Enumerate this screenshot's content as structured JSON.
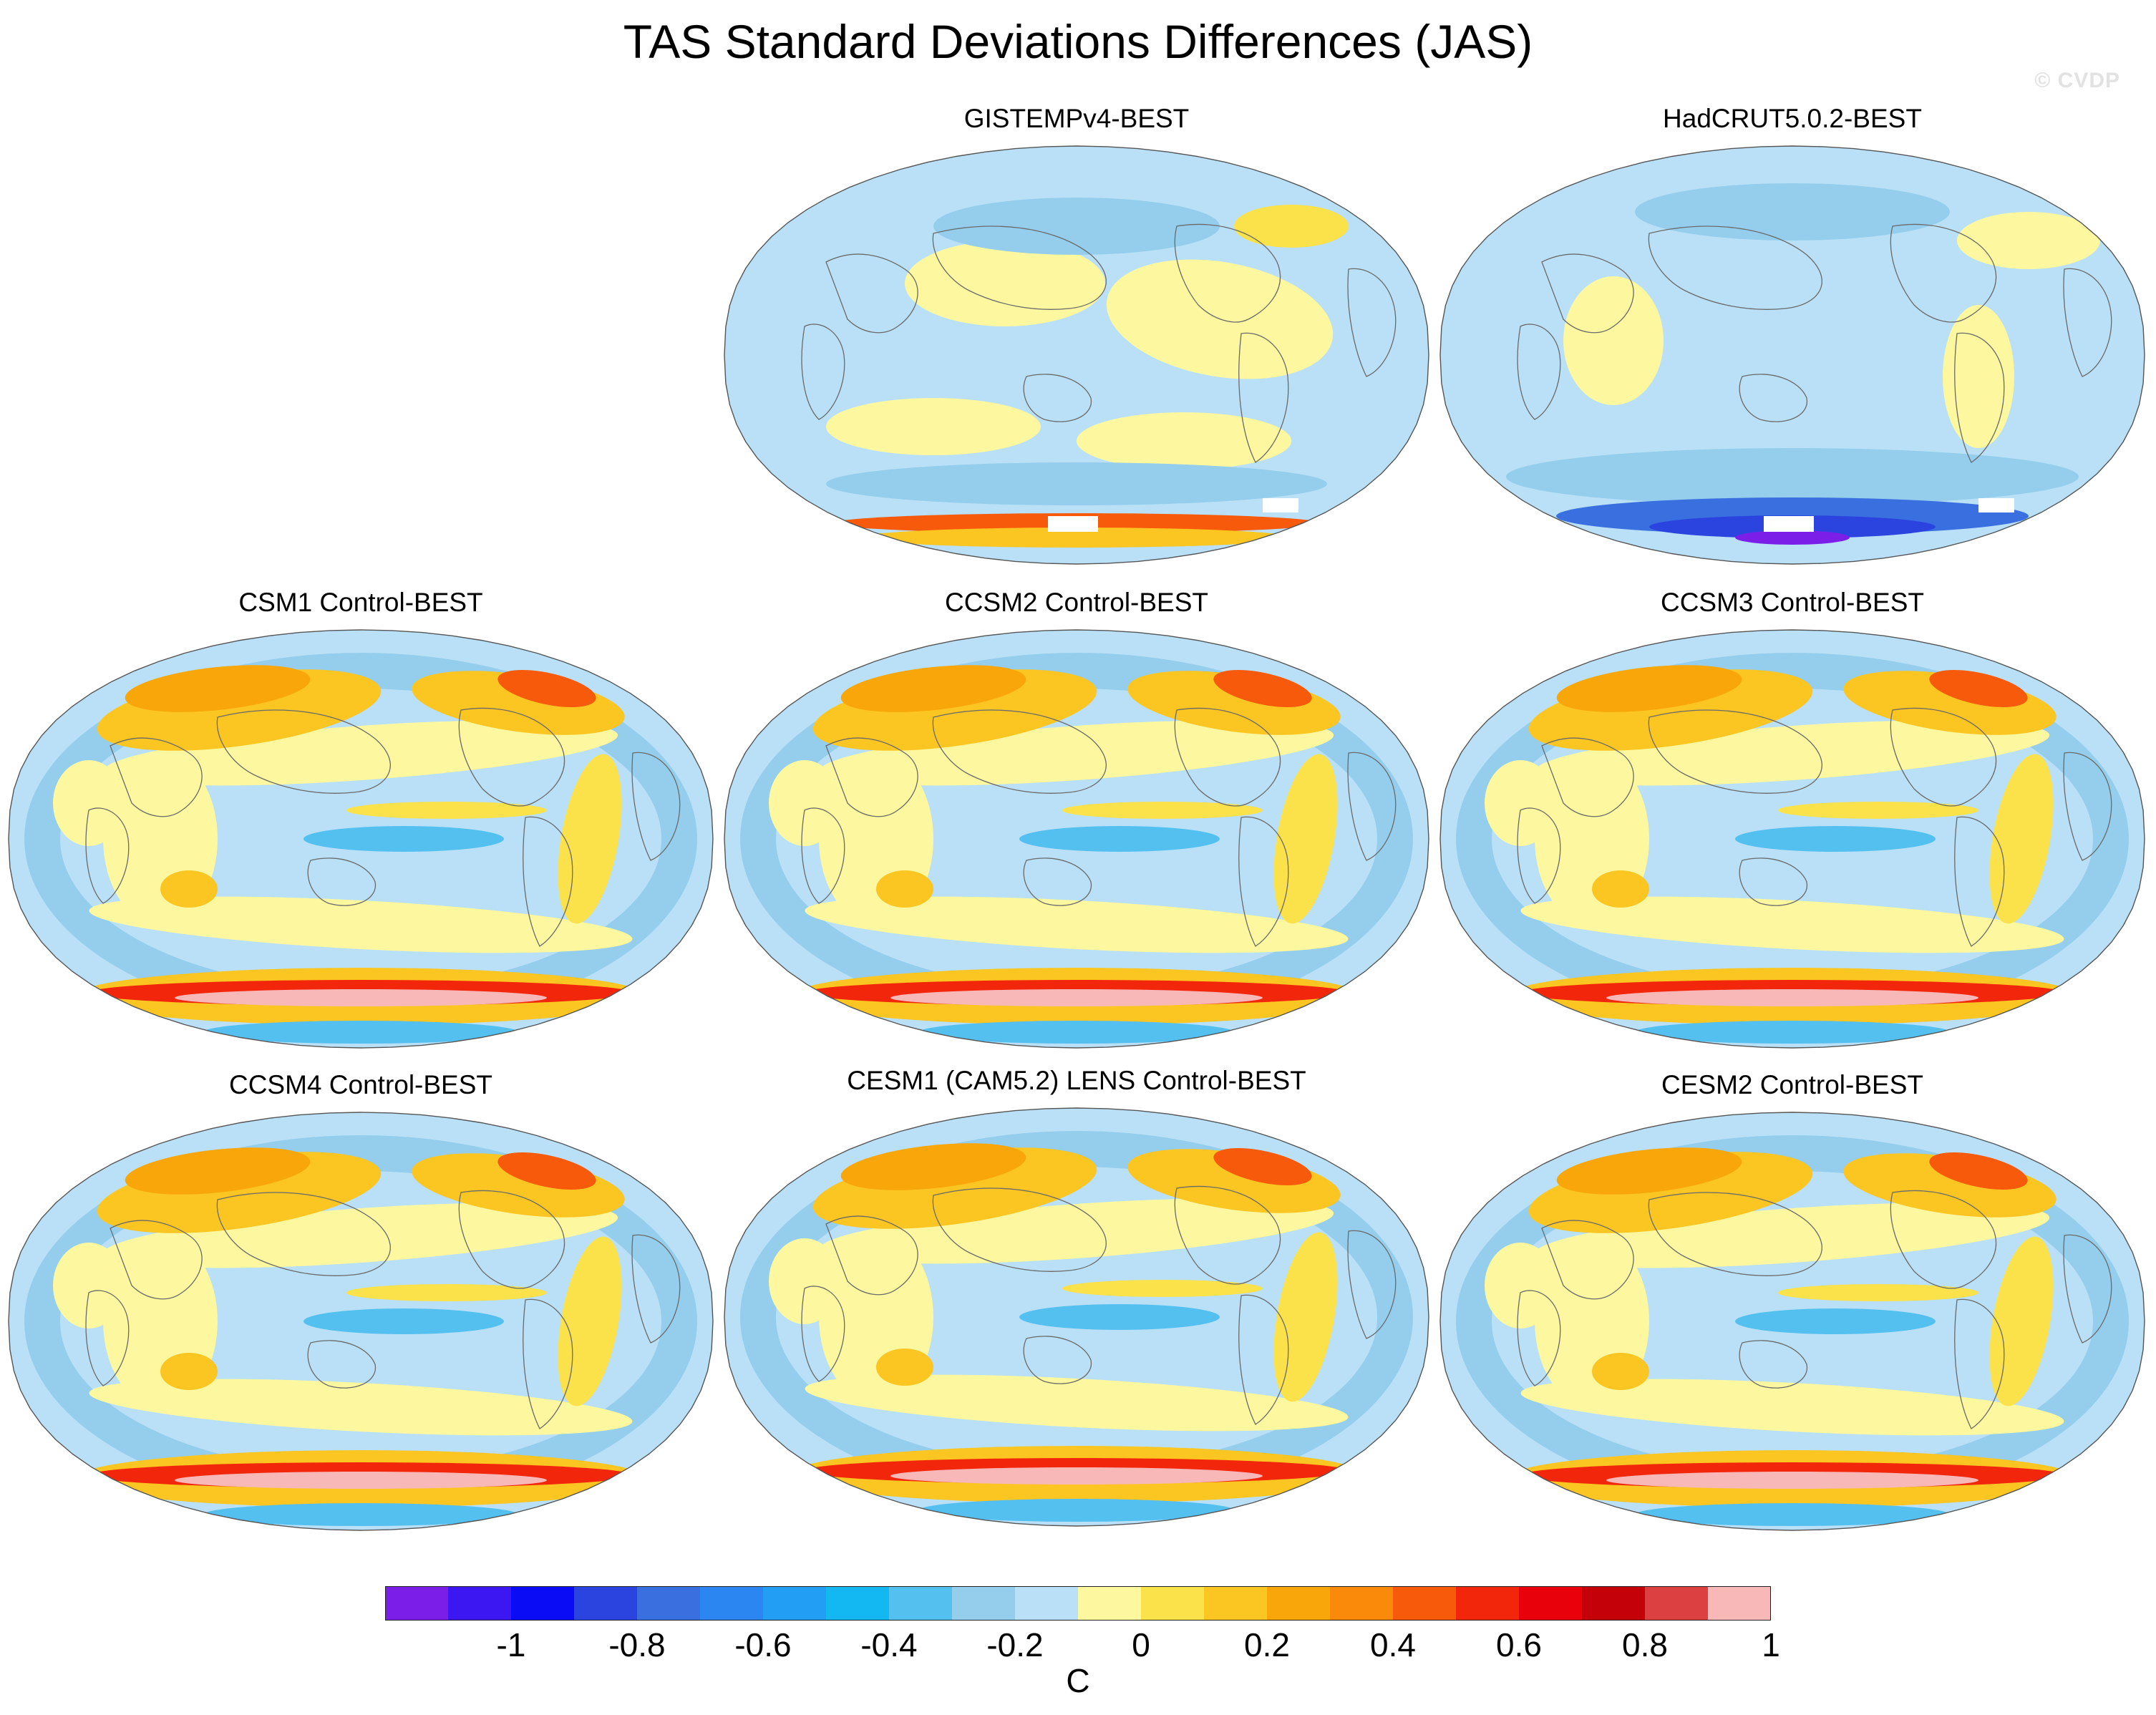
{
  "figure": {
    "title": "TAS Standard Deviations Differences (JAS)",
    "watermark": "© CVDP"
  },
  "panels": [
    {
      "title": "GISTEMPv4-BEST",
      "pattern": "gistemp"
    },
    {
      "title": "HadCRUT5.0.2-BEST",
      "pattern": "hadcrut"
    },
    {
      "title": "CSM1 Control-BEST",
      "pattern": "model"
    },
    {
      "title": "CCSM2 Control-BEST",
      "pattern": "model"
    },
    {
      "title": "CCSM3 Control-BEST",
      "pattern": "model"
    },
    {
      "title": "CCSM4 Control-BEST",
      "pattern": "model"
    },
    {
      "title": "CESM1 (CAM5.2) LENS Control-BEST",
      "pattern": "model"
    },
    {
      "title": "CESM2 Control-BEST",
      "pattern": "model"
    }
  ],
  "colorbar": {
    "labels": [
      "-1",
      "-0.8",
      "-0.6",
      "-0.4",
      "-0.2",
      "0",
      "0.2",
      "0.4",
      "0.6",
      "0.8",
      "1"
    ],
    "units": "C",
    "colors": [
      "#7b1fe8",
      "#3c17f2",
      "#0b0cf6",
      "#2b44e0",
      "#3a6fe0",
      "#2b86f2",
      "#229ef4",
      "#13b8f2",
      "#54c0f0",
      "#94ceec",
      "#b9e0f6",
      "#fdf8a0",
      "#fbe14a",
      "#fbc522",
      "#f9a60a",
      "#f98a0a",
      "#f65a0a",
      "#f2260a",
      "#e8000a",
      "#c40008",
      "#dc4040",
      "#f8b8b8"
    ]
  }
}
